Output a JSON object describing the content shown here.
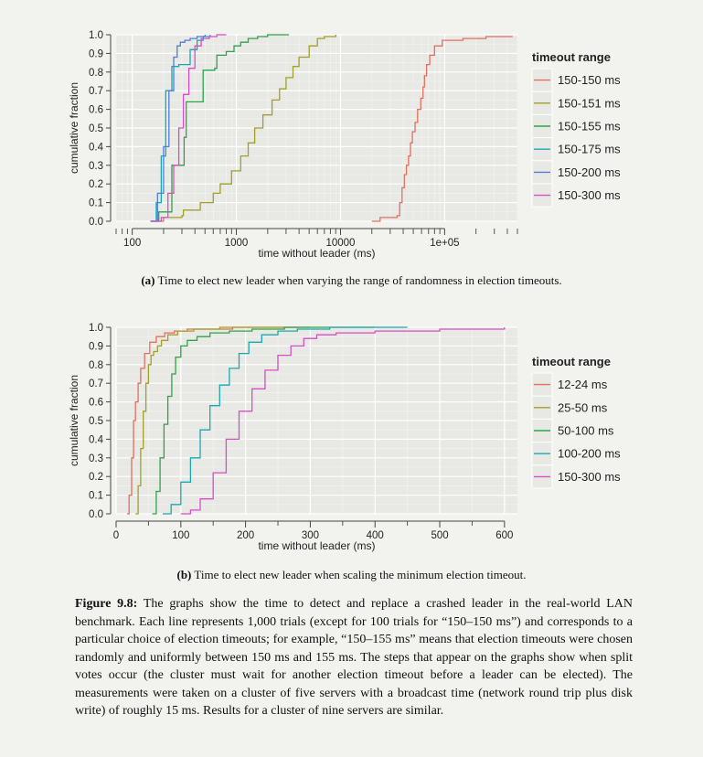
{
  "figure": {
    "caption_label": "Figure 9.8:",
    "caption_text": "The graphs show the time to detect and replace a crashed leader in the real-world LAN benchmark. Each line represents 1,000 trials (except for 100 trials for “150–150 ms”) and corresponds to a particular choice of election timeouts; for example, “150–155 ms” means that election timeouts were chosen randomly and uniformly between 150 ms and 155 ms. The steps that appear on the graphs show when split votes occur (the cluster must wait for another election timeout before a leader can be elected). The measurements were taken on a cluster of five servers with a broadcast time (network round trip plus disk write) of roughly 15 ms. Results for a cluster of nine servers are similar."
  },
  "chart_data": [
    {
      "type": "line",
      "caption_label": "(a)",
      "caption_text": "Time to elect new leader when varying the range of randomness in election timeouts.",
      "xlabel": "time without leader (ms)",
      "ylabel": "cumulative fraction",
      "xscale": "log",
      "xlim": [
        70,
        500000
      ],
      "ylim": [
        0,
        1
      ],
      "xticks": [
        100,
        1000,
        10000,
        100000
      ],
      "xtick_labels": [
        "100",
        "1000",
        "10000",
        "1e+05"
      ],
      "yticks": [
        0.0,
        0.1,
        0.2,
        0.3,
        0.4,
        0.5,
        0.6,
        0.7,
        0.8,
        0.9,
        1.0
      ],
      "ytick_labels": [
        "0.0",
        "0.1",
        "0.2",
        "0.3",
        "0.4",
        "0.5",
        "0.6",
        "0.7",
        "0.8",
        "0.9",
        "1.0"
      ],
      "grid": true,
      "legend_title": "timeout range",
      "legend_position": "right",
      "series": [
        {
          "name": "150-150 ms",
          "color": "#e0705f",
          "x": [
            20000,
            24000,
            25000,
            35000,
            37000,
            39000,
            41000,
            43000,
            45000,
            47000,
            49000,
            52000,
            55000,
            59000,
            62000,
            64000,
            67000,
            72000,
            80000,
            95000,
            150000,
            250000,
            450000
          ],
          "y": [
            0.0,
            0.02,
            0.02,
            0.03,
            0.1,
            0.18,
            0.25,
            0.3,
            0.35,
            0.42,
            0.48,
            0.53,
            0.6,
            0.66,
            0.72,
            0.78,
            0.84,
            0.89,
            0.94,
            0.97,
            0.98,
            0.99,
            0.99
          ]
        },
        {
          "name": "150-151 ms",
          "color": "#a2a02a",
          "x": [
            150,
            200,
            300,
            310,
            450,
            600,
            700,
            900,
            1100,
            1300,
            1500,
            1800,
            2200,
            2600,
            3000,
            3500,
            4000,
            5000,
            6000,
            7000,
            9000
          ],
          "y": [
            0.0,
            0.02,
            0.03,
            0.06,
            0.1,
            0.15,
            0.2,
            0.27,
            0.35,
            0.42,
            0.5,
            0.57,
            0.65,
            0.71,
            0.77,
            0.83,
            0.88,
            0.94,
            0.98,
            0.99,
            1.0
          ]
        },
        {
          "name": "150-155 ms",
          "color": "#2ea44a",
          "x": [
            150,
            180,
            240,
            300,
            315,
            330,
            460,
            480,
            620,
            650,
            800,
            950,
            1100,
            1300,
            1600,
            2000,
            2600,
            3200
          ],
          "y": [
            0.0,
            0.05,
            0.3,
            0.3,
            0.45,
            0.64,
            0.64,
            0.81,
            0.82,
            0.89,
            0.91,
            0.94,
            0.96,
            0.98,
            0.99,
            1.0,
            1.0,
            1.0
          ]
        },
        {
          "name": "150-175 ms",
          "color": "#1aa8b0",
          "x": [
            150,
            170,
            190,
            210,
            240,
            280,
            320,
            360,
            420,
            480,
            560
          ],
          "y": [
            0.0,
            0.1,
            0.35,
            0.7,
            0.83,
            0.84,
            0.84,
            0.92,
            0.97,
            0.99,
            1.0
          ]
        },
        {
          "name": "150-200 ms",
          "color": "#4f7fd8",
          "x": [
            150,
            175,
            200,
            225,
            250,
            270,
            290,
            320,
            360,
            420,
            500
          ],
          "y": [
            0.0,
            0.15,
            0.4,
            0.7,
            0.88,
            0.94,
            0.96,
            0.97,
            0.98,
            0.99,
            1.0
          ]
        },
        {
          "name": "150-300 ms",
          "color": "#d74ec8",
          "x": [
            150,
            190,
            220,
            250,
            280,
            310,
            350,
            400,
            460,
            550,
            650,
            800
          ],
          "y": [
            0.0,
            0.02,
            0.15,
            0.3,
            0.5,
            0.68,
            0.82,
            0.94,
            0.98,
            0.99,
            1.0,
            1.0
          ]
        }
      ]
    },
    {
      "type": "line",
      "caption_label": "(b)",
      "caption_text": "Time to elect new leader when scaling the minimum election timeout.",
      "xlabel": "time without leader (ms)",
      "ylabel": "cumulative fraction",
      "xscale": "linear",
      "xlim": [
        0,
        620
      ],
      "ylim": [
        0,
        1
      ],
      "xticks": [
        0,
        100,
        200,
        300,
        400,
        500,
        600
      ],
      "xtick_labels": [
        "0",
        "100",
        "200",
        "300",
        "400",
        "500",
        "600"
      ],
      "yticks": [
        0.0,
        0.1,
        0.2,
        0.3,
        0.4,
        0.5,
        0.6,
        0.7,
        0.8,
        0.9,
        1.0
      ],
      "ytick_labels": [
        "0.0",
        "0.1",
        "0.2",
        "0.3",
        "0.4",
        "0.5",
        "0.6",
        "0.7",
        "0.8",
        "0.9",
        "1.0"
      ],
      "grid": true,
      "legend_title": "timeout range",
      "legend_position": "right",
      "series": [
        {
          "name": "12-24 ms",
          "color": "#e0705f",
          "x": [
            17,
            20,
            24,
            27,
            30,
            34,
            38,
            44,
            52,
            62,
            75,
            90,
            110,
            140,
            180,
            240,
            280
          ],
          "y": [
            0.0,
            0.1,
            0.3,
            0.5,
            0.6,
            0.7,
            0.78,
            0.86,
            0.92,
            0.95,
            0.97,
            0.98,
            0.99,
            0.99,
            1.0,
            1.0,
            1.0
          ]
        },
        {
          "name": "25-50 ms",
          "color": "#a2a02a",
          "x": [
            30,
            34,
            38,
            42,
            46,
            50,
            54,
            58,
            64,
            70,
            80,
            95,
            120,
            160,
            220,
            300
          ],
          "y": [
            0.0,
            0.15,
            0.35,
            0.55,
            0.7,
            0.8,
            0.85,
            0.87,
            0.9,
            0.93,
            0.96,
            0.98,
            0.99,
            1.0,
            1.0,
            1.0
          ]
        },
        {
          "name": "50-100 ms",
          "color": "#2ea44a",
          "x": [
            56,
            62,
            68,
            74,
            80,
            86,
            92,
            100,
            110,
            125,
            145,
            175,
            210,
            260,
            330,
            400
          ],
          "y": [
            0.0,
            0.12,
            0.3,
            0.48,
            0.63,
            0.75,
            0.84,
            0.9,
            0.93,
            0.95,
            0.97,
            0.98,
            0.99,
            1.0,
            1.0,
            1.0
          ]
        },
        {
          "name": "100-200 ms",
          "color": "#1aa8b0",
          "x": [
            72,
            85,
            100,
            115,
            130,
            145,
            160,
            175,
            190,
            205,
            225,
            250,
            280,
            330,
            400,
            450
          ],
          "y": [
            0.0,
            0.05,
            0.17,
            0.3,
            0.45,
            0.58,
            0.69,
            0.78,
            0.86,
            0.92,
            0.96,
            0.98,
            0.99,
            1.0,
            1.0,
            1.0
          ]
        },
        {
          "name": "150-300 ms",
          "color": "#d74ec8",
          "x": [
            100,
            115,
            130,
            150,
            170,
            190,
            210,
            230,
            250,
            270,
            290,
            310,
            340,
            400,
            450,
            500,
            600
          ],
          "y": [
            0.0,
            0.02,
            0.08,
            0.22,
            0.4,
            0.55,
            0.67,
            0.77,
            0.85,
            0.9,
            0.94,
            0.96,
            0.97,
            0.98,
            0.98,
            0.99,
            1.0
          ]
        }
      ]
    }
  ]
}
